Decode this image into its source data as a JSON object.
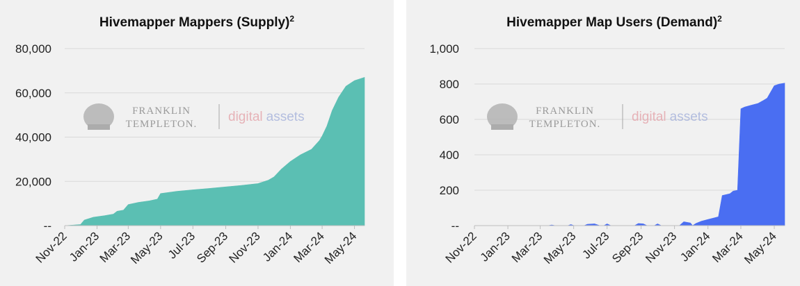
{
  "watermark": {
    "line1": "FRANKLIN",
    "line2": "TEMPLETON.",
    "word1": "digital",
    "word2": "assets",
    "color1": "#e5a8ae",
    "color2": "#a9b5dc"
  },
  "chart_data": [
    {
      "type": "area",
      "title": "Hivemapper Mappers (Supply)",
      "title_sup": "2",
      "color": "#5bbfb3",
      "ylim": [
        0,
        80000
      ],
      "yticks": [
        0,
        20000,
        40000,
        60000,
        80000
      ],
      "ytick_labels": [
        "--",
        "20,000",
        "40,000",
        "60,000",
        "80,000"
      ],
      "xticks": [
        "2022-11-01",
        "2023-01-01",
        "2023-03-01",
        "2023-05-01",
        "2023-07-01",
        "2023-09-01",
        "2023-11-01",
        "2024-01-01",
        "2024-03-01",
        "2024-05-01"
      ],
      "xtick_labels": [
        "Nov-22",
        "Jan-23",
        "Mar-23",
        "May-23",
        "Jul-23",
        "Sep-23",
        "Nov-23",
        "Jan-24",
        "Mar-24",
        "May-24"
      ],
      "xlim": [
        "2022-11-01",
        "2024-05-20"
      ],
      "points": [
        [
          "2022-11-01",
          0
        ],
        [
          "2022-11-20",
          300
        ],
        [
          "2022-12-01",
          500
        ],
        [
          "2022-12-08",
          2500
        ],
        [
          "2022-12-25",
          3800
        ],
        [
          "2023-01-15",
          4500
        ],
        [
          "2023-02-01",
          5200
        ],
        [
          "2023-02-08",
          6500
        ],
        [
          "2023-02-20",
          7000
        ],
        [
          "2023-03-01",
          9500
        ],
        [
          "2023-03-20",
          10500
        ],
        [
          "2023-04-10",
          11200
        ],
        [
          "2023-04-25",
          12000
        ],
        [
          "2023-05-01",
          14500
        ],
        [
          "2023-06-01",
          15500
        ],
        [
          "2023-07-01",
          16200
        ],
        [
          "2023-08-01",
          16800
        ],
        [
          "2023-09-01",
          17500
        ],
        [
          "2023-10-01",
          18200
        ],
        [
          "2023-11-01",
          19000
        ],
        [
          "2023-11-20",
          20500
        ],
        [
          "2023-12-01",
          22000
        ],
        [
          "2023-12-15",
          25500
        ],
        [
          "2024-01-01",
          29000
        ],
        [
          "2024-01-20",
          32000
        ],
        [
          "2024-02-10",
          34500
        ],
        [
          "2024-02-25",
          38500
        ],
        [
          "2024-03-01",
          40500
        ],
        [
          "2024-03-10",
          45000
        ],
        [
          "2024-03-20",
          52000
        ],
        [
          "2024-04-01",
          58000
        ],
        [
          "2024-04-15",
          63000
        ],
        [
          "2024-05-01",
          65500
        ],
        [
          "2024-05-20",
          67000
        ]
      ]
    },
    {
      "type": "area",
      "title": "Hivemapper Map Users (Demand)",
      "title_sup": "2",
      "color": "#4a6ef2",
      "ylim": [
        0,
        1000
      ],
      "yticks": [
        0,
        200,
        400,
        600,
        800,
        1000
      ],
      "ytick_labels": [
        "--",
        "200",
        "400",
        "600",
        "800",
        "1,000"
      ],
      "xticks": [
        "2022-11-01",
        "2023-01-01",
        "2023-03-01",
        "2023-05-01",
        "2023-07-01",
        "2023-09-01",
        "2023-11-01",
        "2024-01-01",
        "2024-03-01",
        "2024-05-01"
      ],
      "xtick_labels": [
        "Nov-22",
        "Jan-23",
        "Mar-23",
        "May-23",
        "Jul-23",
        "Sep-23",
        "Nov-23",
        "Jan-24",
        "Mar-24",
        "May-24"
      ],
      "xlim": [
        "2022-11-01",
        "2024-05-20"
      ],
      "points": [
        [
          "2022-11-01",
          0
        ],
        [
          "2023-03-15",
          0
        ],
        [
          "2023-03-22",
          4
        ],
        [
          "2023-03-29",
          0
        ],
        [
          "2023-04-20",
          0
        ],
        [
          "2023-04-26",
          6
        ],
        [
          "2023-05-02",
          0
        ],
        [
          "2023-05-20",
          0
        ],
        [
          "2023-05-26",
          8
        ],
        [
          "2023-06-08",
          10
        ],
        [
          "2023-06-18",
          0
        ],
        [
          "2023-06-25",
          0
        ],
        [
          "2023-07-01",
          10
        ],
        [
          "2023-07-08",
          0
        ],
        [
          "2023-08-20",
          0
        ],
        [
          "2023-08-27",
          12
        ],
        [
          "2023-09-05",
          10
        ],
        [
          "2023-09-12",
          0
        ],
        [
          "2023-09-25",
          0
        ],
        [
          "2023-10-01",
          10
        ],
        [
          "2023-10-08",
          0
        ],
        [
          "2023-11-10",
          0
        ],
        [
          "2023-11-18",
          22
        ],
        [
          "2023-11-30",
          15
        ],
        [
          "2023-12-04",
          0
        ],
        [
          "2023-12-10",
          12
        ],
        [
          "2023-12-20",
          25
        ],
        [
          "2024-01-20",
          50
        ],
        [
          "2024-01-27",
          170
        ],
        [
          "2024-02-10",
          180
        ],
        [
          "2024-02-16",
          195
        ],
        [
          "2024-02-24",
          200
        ],
        [
          "2024-03-01",
          660
        ],
        [
          "2024-03-08",
          670
        ],
        [
          "2024-03-20",
          680
        ],
        [
          "2024-04-01",
          690
        ],
        [
          "2024-04-10",
          705
        ],
        [
          "2024-04-18",
          720
        ],
        [
          "2024-05-01",
          790
        ],
        [
          "2024-05-10",
          800
        ],
        [
          "2024-05-20",
          805
        ]
      ]
    }
  ]
}
